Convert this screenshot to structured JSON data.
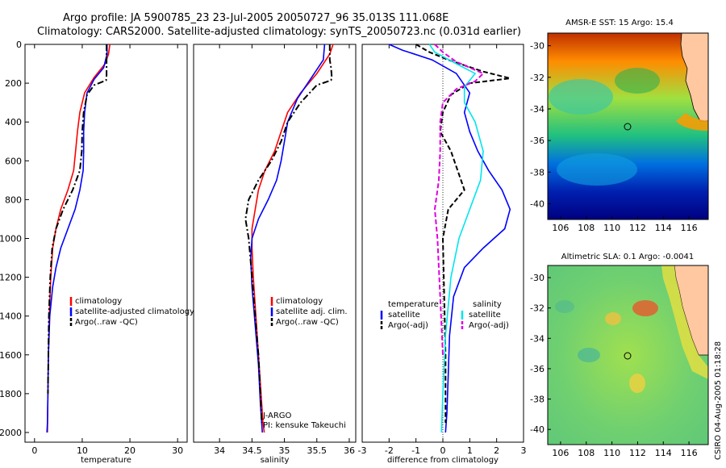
{
  "title_line1": "Argo profile: JA 5900785_23 23-Jul-2005 20050727_96 35.013S 111.068E",
  "title_line2": "Climatology: CARS2000. Satellite-adjusted climatology: synTS_20050723.nc (0.031d earlier)",
  "stamp": "CSIRO 04-Aug-2005 01:18:28",
  "colors": {
    "climatology": "#ff0000",
    "satellite": "#0000ff",
    "argo": "#000000",
    "sal_satellite": "#00e5ee",
    "sal_argo": "#e000e0",
    "coast_land": "#ffc8a0"
  },
  "chart_data": [
    {
      "type": "line",
      "name": "temperature-panel",
      "xlabel": "temperature",
      "xlim": [
        -2,
        32
      ],
      "ylim": [
        2050,
        0
      ],
      "xticks": [
        0,
        10,
        20,
        30
      ],
      "yticks": [
        0,
        200,
        400,
        600,
        800,
        1000,
        1200,
        1400,
        1600,
        1800,
        2000
      ],
      "legend": [
        "climatology",
        "satellite-adjusted climatology",
        "Argo(..raw -QC)"
      ],
      "series": [
        {
          "name": "climatology",
          "color": "red",
          "style": "solid",
          "x": [
            15.8,
            15.5,
            14.8,
            12.5,
            10.5,
            9.5,
            9.0,
            8.6,
            8.2,
            7.0,
            5.5,
            4.5,
            3.8,
            3.4,
            3.1,
            2.9,
            2.8,
            2.7
          ],
          "y": [
            0,
            50,
            100,
            170,
            250,
            350,
            450,
            550,
            650,
            750,
            850,
            950,
            1050,
            1200,
            1400,
            1600,
            1800,
            2000
          ]
        },
        {
          "name": "satellite-adjusted climatology",
          "color": "blue",
          "style": "solid",
          "x": [
            15.2,
            15.2,
            14.5,
            12.5,
            11.0,
            10.5,
            10.3,
            10.3,
            10.2,
            9.5,
            8.5,
            7.0,
            5.5,
            4.5,
            3.8,
            3.2,
            2.9,
            2.8,
            2.7,
            2.6
          ],
          "y": [
            0,
            50,
            120,
            180,
            250,
            350,
            450,
            550,
            650,
            750,
            850,
            950,
            1050,
            1150,
            1250,
            1400,
            1600,
            1800,
            1950,
            2000
          ]
        },
        {
          "name": "Argo(..raw -QC)",
          "color": "black",
          "style": "dashdot",
          "x": [
            15.1,
            15.1,
            15.1,
            15.1,
            15.0,
            12.5,
            11.0,
            10.3,
            10.0,
            9.9,
            9.5,
            8.0,
            6.0,
            4.5,
            3.7,
            3.3,
            3.0,
            2.9,
            2.8
          ],
          "y": [
            0,
            60,
            120,
            160,
            185,
            210,
            260,
            350,
            450,
            550,
            650,
            750,
            850,
            950,
            1050,
            1200,
            1400,
            1600,
            1800
          ]
        }
      ],
      "annotations": []
    },
    {
      "type": "line",
      "name": "salinity-panel",
      "xlabel": "salinity",
      "xlim": [
        33.6,
        36.1
      ],
      "ylim": [
        2050,
        0
      ],
      "xticks": [
        34,
        34.5,
        35,
        35.5,
        36
      ],
      "yticks": [],
      "legend": [
        "climatology",
        "satellite adj. clim.",
        "Argo(..raw -QC)"
      ],
      "series": [
        {
          "name": "climatology",
          "color": "red",
          "style": "solid",
          "x": [
            35.75,
            35.7,
            35.5,
            35.25,
            35.05,
            34.95,
            34.85,
            34.7,
            34.6,
            34.55,
            34.5,
            34.5,
            34.52,
            34.56,
            34.6,
            34.64,
            34.67,
            34.69
          ],
          "y": [
            0,
            50,
            150,
            250,
            350,
            450,
            550,
            650,
            750,
            850,
            950,
            1050,
            1200,
            1400,
            1600,
            1800,
            1950,
            2000
          ]
        },
        {
          "name": "satellite adj. clim.",
          "color": "blue",
          "style": "solid",
          "x": [
            35.62,
            35.6,
            35.4,
            35.2,
            35.05,
            35.0,
            34.95,
            34.88,
            34.75,
            34.6,
            34.5,
            34.48,
            34.5,
            34.55,
            34.6,
            34.63,
            34.66
          ],
          "y": [
            0,
            80,
            180,
            280,
            400,
            500,
            600,
            700,
            800,
            900,
            1000,
            1100,
            1250,
            1450,
            1650,
            1850,
            2000
          ]
        },
        {
          "name": "Argo(..raw -QC)",
          "color": "black",
          "style": "dashdot",
          "x": [
            35.7,
            35.7,
            35.72,
            35.73,
            35.72,
            35.5,
            35.25,
            35.05,
            34.95,
            34.8,
            34.6,
            34.45,
            34.4,
            34.45,
            34.5,
            34.55,
            34.6,
            34.63,
            34.65
          ],
          "y": [
            0,
            80,
            120,
            170,
            185,
            210,
            300,
            400,
            500,
            600,
            700,
            800,
            900,
            1000,
            1200,
            1400,
            1600,
            1800,
            1950
          ]
        }
      ],
      "annotations": [
        "J-ARGO",
        "PI: kensuke Takeuchi"
      ]
    },
    {
      "type": "line",
      "name": "difference-panel",
      "xlabel": "difference from climatology",
      "xlim": [
        -3,
        3
      ],
      "ylim": [
        2050,
        0
      ],
      "xticks": [
        -3,
        -2,
        -1,
        0,
        1,
        2,
        3
      ],
      "yticks": [],
      "legend_left_heading": "temperature",
      "legend_right_heading": "salinity",
      "legend": [
        "satellite",
        "Argo(-adj)",
        "satellite",
        "Argo(-adj)"
      ],
      "series": [
        {
          "name": "temperature satellite",
          "color": "blue",
          "style": "solid",
          "x": [
            -2.0,
            -1.5,
            -0.4,
            0.5,
            1.0,
            0.8,
            1.0,
            1.3,
            1.7,
            2.2,
            2.5,
            2.3,
            1.5,
            0.8,
            0.4,
            0.25,
            0.2,
            0.15,
            0.1
          ],
          "y": [
            0,
            30,
            80,
            150,
            250,
            350,
            450,
            550,
            650,
            750,
            850,
            950,
            1050,
            1150,
            1300,
            1500,
            1700,
            1900,
            2000
          ]
        },
        {
          "name": "temperature Argo(-adj)",
          "color": "black",
          "style": "dashed",
          "x": [
            -1.0,
            -0.5,
            0.2,
            1.5,
            2.5,
            1.0,
            0.3,
            0.0,
            -0.1,
            0.3,
            0.8,
            0.2,
            0.0,
            0.05,
            0.1,
            0.1
          ],
          "y": [
            0,
            40,
            80,
            140,
            175,
            200,
            260,
            350,
            450,
            550,
            750,
            850,
            1000,
            1300,
            1600,
            1950
          ]
        },
        {
          "name": "salinity satellite",
          "color": "cyan",
          "style": "solid",
          "x": [
            -0.5,
            -0.3,
            0.5,
            1.2,
            0.8,
            0.8,
            1.2,
            1.5,
            1.4,
            1.0,
            0.6,
            0.3,
            0.1,
            0.0,
            -0.05
          ],
          "y": [
            0,
            40,
            100,
            150,
            220,
            300,
            400,
            550,
            700,
            850,
            1000,
            1200,
            1500,
            1800,
            2000
          ]
        },
        {
          "name": "salinity Argo(-adj)",
          "color": "magenta",
          "style": "dashed",
          "x": [
            -0.3,
            0.0,
            0.5,
            1.5,
            1.2,
            0.5,
            0.0,
            -0.1,
            -0.1,
            -0.15,
            -0.3,
            -0.2,
            -0.1,
            0.0
          ],
          "y": [
            0,
            40,
            90,
            150,
            190,
            230,
            300,
            400,
            550,
            700,
            850,
            1000,
            1300,
            1600
          ]
        }
      ],
      "annotations": []
    }
  ],
  "maps": [
    {
      "title": "AMSR-E SST: 15 Argo: 15.4",
      "xticks": [
        106,
        108,
        110,
        112,
        114,
        116
      ],
      "yticks": [
        -30,
        -32,
        -34,
        -36,
        -38,
        -40
      ]
    },
    {
      "title": "Altimetric SLA: 0.1 Argo: -0.0041",
      "xticks": [
        106,
        108,
        110,
        112,
        114,
        116
      ],
      "yticks": [
        -30,
        -32,
        -34,
        -36,
        -38,
        -40
      ]
    }
  ]
}
